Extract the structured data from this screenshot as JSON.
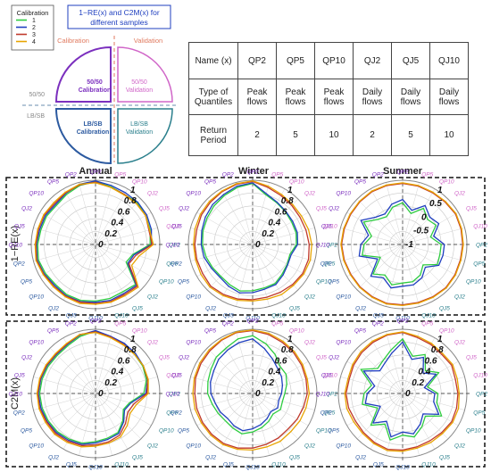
{
  "legend": {
    "title": "Calibration",
    "items": [
      {
        "label": "1",
        "color": "#2ecc40"
      },
      {
        "label": "2",
        "color": "#1f3fbf"
      },
      {
        "label": "3",
        "color": "#c0392b"
      },
      {
        "label": "4",
        "color": "#e8a400"
      }
    ]
  },
  "title_box": {
    "line1": "1−RE(x) and C2M(x) for",
    "line2": "different samples"
  },
  "schematic": {
    "calibration": "Calibration",
    "validation": "Validation",
    "split_top": "50/50",
    "split_bottom": "LB/SB",
    "q_tl": [
      "50/50",
      "Calibration"
    ],
    "q_tr": [
      "50/50",
      "Validation"
    ],
    "q_bl": [
      "LB/SB",
      "Calibration"
    ],
    "q_br": [
      "LB/SB",
      "Validation"
    ],
    "colors": {
      "purple": "#7b2fbe",
      "pink": "#d066c8",
      "blue": "#2c5aa0",
      "teal": "#2a7f8c",
      "orange": "#e07a5f"
    }
  },
  "table": {
    "row_headers": [
      "Name (x)",
      "Type of Quantiles",
      "Return Period"
    ],
    "names": [
      "QP2",
      "QP5",
      "QP10",
      "QJ2",
      "QJ5",
      "QJ10"
    ],
    "types": [
      "Peak flows",
      "Peak flows",
      "Peak flows",
      "Daily flows",
      "Daily flows",
      "Daily flows"
    ],
    "periods": [
      "2",
      "5",
      "10",
      "2",
      "5",
      "10"
    ]
  },
  "columns": [
    "Annual",
    "Winter",
    "Summer"
  ],
  "rows": [
    "1−RE(x)",
    "C2M(x)"
  ],
  "radial_ticks": [
    "1",
    "0.8",
    "0.6",
    "0.4",
    "0.2",
    "0"
  ],
  "summer_re_ticks": [
    "1",
    "0.5",
    "0",
    "-0.5",
    "-1"
  ],
  "axis_labels": [
    {
      "text": "QP2",
      "color": "#7b2fbe"
    },
    {
      "text": "QP5",
      "color": "#d066c8"
    },
    {
      "text": "QP10",
      "color": "#d066c8"
    },
    {
      "text": "QJ2",
      "color": "#d066c8"
    },
    {
      "text": "QJ5",
      "color": "#d066c8"
    },
    {
      "text": "QJ10",
      "color": "#d066c8"
    },
    {
      "text": "QP2",
      "color": "#2a7f8c"
    },
    {
      "text": "QP5",
      "color": "#2a7f8c"
    },
    {
      "text": "QP10",
      "color": "#2a7f8c"
    },
    {
      "text": "QJ2",
      "color": "#2a7f8c"
    },
    {
      "text": "QJ5",
      "color": "#2a7f8c"
    },
    {
      "text": "QJ10",
      "color": "#2a7f8c"
    },
    {
      "text": "QJ10",
      "color": "#2c5aa0"
    },
    {
      "text": "QJ5",
      "color": "#2c5aa0"
    },
    {
      "text": "QJ2",
      "color": "#2c5aa0"
    },
    {
      "text": "QP10",
      "color": "#2c5aa0"
    },
    {
      "text": "QP5",
      "color": "#2c5aa0"
    },
    {
      "text": "QP2",
      "color": "#2c5aa0"
    },
    {
      "text": "QJ10",
      "color": "#7b2fbe"
    },
    {
      "text": "QJ5",
      "color": "#7b2fbe"
    },
    {
      "text": "QJ2",
      "color": "#7b2fbe"
    },
    {
      "text": "QP10",
      "color": "#7b2fbe"
    },
    {
      "text": "QP5",
      "color": "#7b2fbe"
    },
    {
      "text": "QP2",
      "color": "#7b2fbe"
    }
  ],
  "chart_data": {
    "type": "radar",
    "panels": [
      {
        "row": "1−RE(x)",
        "col": "Annual",
        "rmin": 0,
        "rmax": 1,
        "series": [
          {
            "name": "1",
            "values": [
              0.98,
              0.93,
              0.9,
              0.92,
              0.9,
              0.88,
              0.85,
              0.6,
              0.55,
              0.88,
              0.85,
              0.87,
              0.88,
              0.9,
              0.9,
              0.88,
              0.9,
              0.92,
              0.9,
              0.88,
              0.88,
              0.86,
              0.9,
              0.95
            ]
          },
          {
            "name": "2",
            "values": [
              0.99,
              0.95,
              0.93,
              0.93,
              0.92,
              0.9,
              0.87,
              0.62,
              0.58,
              0.9,
              0.88,
              0.9,
              0.9,
              0.92,
              0.92,
              0.9,
              0.92,
              0.94,
              0.92,
              0.9,
              0.9,
              0.88,
              0.92,
              0.97
            ]
          },
          {
            "name": "3",
            "values": [
              0.97,
              0.92,
              0.9,
              0.9,
              0.9,
              0.86,
              0.88,
              0.65,
              0.6,
              0.92,
              0.9,
              0.92,
              0.92,
              0.93,
              0.93,
              0.92,
              0.93,
              0.95,
              0.93,
              0.92,
              0.92,
              0.9,
              0.93,
              0.96
            ]
          },
          {
            "name": "4",
            "values": [
              0.96,
              0.92,
              0.89,
              0.9,
              0.9,
              0.87,
              0.9,
              0.7,
              0.65,
              0.94,
              0.92,
              0.93,
              0.93,
              0.95,
              0.94,
              0.93,
              0.94,
              0.96,
              0.94,
              0.93,
              0.93,
              0.92,
              0.94,
              0.97
            ]
          }
        ]
      },
      {
        "row": "1−RE(x)",
        "col": "Winter",
        "rmin": 0,
        "rmax": 1,
        "series": [
          {
            "name": "1",
            "values": [
              0.95,
              0.8,
              0.75,
              0.72,
              0.7,
              0.7,
              0.68,
              0.6,
              0.62,
              0.65,
              0.7,
              0.7,
              0.72,
              0.75,
              0.72,
              0.7,
              0.72,
              0.75,
              0.78,
              0.8,
              0.82,
              0.85,
              0.88,
              0.92
            ]
          },
          {
            "name": "2",
            "values": [
              0.96,
              0.82,
              0.76,
              0.73,
              0.72,
              0.72,
              0.7,
              0.62,
              0.63,
              0.67,
              0.72,
              0.72,
              0.75,
              0.78,
              0.75,
              0.72,
              0.74,
              0.78,
              0.8,
              0.82,
              0.85,
              0.88,
              0.9,
              0.94
            ]
          },
          {
            "name": "3",
            "values": [
              0.98,
              0.92,
              0.88,
              0.86,
              0.85,
              0.86,
              0.88,
              0.9,
              0.9,
              0.88,
              0.86,
              0.85,
              0.86,
              0.88,
              0.9,
              0.92,
              0.9,
              0.9,
              0.9,
              0.9,
              0.92,
              0.93,
              0.95,
              0.97
            ]
          },
          {
            "name": "4",
            "values": [
              0.99,
              0.94,
              0.9,
              0.88,
              0.88,
              0.9,
              0.92,
              0.93,
              0.92,
              0.9,
              0.9,
              0.88,
              0.88,
              0.9,
              0.92,
              0.94,
              0.93,
              0.92,
              0.92,
              0.93,
              0.94,
              0.95,
              0.96,
              0.98
            ]
          }
        ]
      },
      {
        "row": "1−RE(x)",
        "col": "Summer",
        "rmin": -1,
        "rmax": 1,
        "series": [
          {
            "name": "1",
            "values": [
              0.3,
              0.0,
              0.3,
              0.1,
              0.2,
              -0.1,
              0.2,
              0.2,
              0.25,
              -0.1,
              0.1,
              0.2,
              0.2,
              0.3,
              0.1,
              0.3,
              -0.2,
              0.3,
              0.2,
              0.0,
              0.4,
              0.1,
              0.0,
              0.2
            ]
          },
          {
            "name": "2",
            "values": [
              0.4,
              0.1,
              0.4,
              0.2,
              0.3,
              0.0,
              0.3,
              0.3,
              0.3,
              0.0,
              0.2,
              0.3,
              0.3,
              0.4,
              0.2,
              0.4,
              -0.1,
              0.4,
              0.3,
              0.1,
              0.5,
              0.2,
              0.1,
              0.3
            ]
          },
          {
            "name": "3",
            "values": [
              0.9,
              0.88,
              0.86,
              0.87,
              0.9,
              0.88,
              0.87,
              0.86,
              0.88,
              0.9,
              0.88,
              0.87,
              0.88,
              0.9,
              0.88,
              0.87,
              0.86,
              0.88,
              0.9,
              0.88,
              0.87,
              0.88,
              0.9,
              0.9
            ]
          },
          {
            "name": "4",
            "values": [
              0.92,
              0.9,
              0.88,
              0.89,
              0.92,
              0.9,
              0.89,
              0.88,
              0.9,
              0.92,
              0.9,
              0.89,
              0.9,
              0.92,
              0.9,
              0.89,
              0.88,
              0.9,
              0.92,
              0.9,
              0.89,
              0.9,
              0.92,
              0.92
            ]
          }
        ]
      },
      {
        "row": "C2M(x)",
        "col": "Annual",
        "rmin": 0,
        "rmax": 1,
        "series": [
          {
            "name": "1",
            "values": [
              0.97,
              0.9,
              0.88,
              0.86,
              0.85,
              0.82,
              0.75,
              0.55,
              0.5,
              0.6,
              0.7,
              0.72,
              0.75,
              0.8,
              0.82,
              0.84,
              0.85,
              0.86,
              0.87,
              0.86,
              0.85,
              0.84,
              0.86,
              0.92
            ]
          },
          {
            "name": "2",
            "values": [
              0.98,
              0.92,
              0.9,
              0.88,
              0.86,
              0.84,
              0.78,
              0.57,
              0.52,
              0.62,
              0.72,
              0.74,
              0.77,
              0.82,
              0.84,
              0.86,
              0.87,
              0.88,
              0.89,
              0.88,
              0.87,
              0.86,
              0.88,
              0.94
            ]
          },
          {
            "name": "3",
            "values": [
              0.96,
              0.91,
              0.88,
              0.86,
              0.86,
              0.84,
              0.8,
              0.62,
              0.58,
              0.66,
              0.75,
              0.78,
              0.8,
              0.84,
              0.86,
              0.88,
              0.88,
              0.9,
              0.9,
              0.89,
              0.88,
              0.87,
              0.89,
              0.95
            ]
          },
          {
            "name": "4",
            "values": [
              0.95,
              0.9,
              0.87,
              0.86,
              0.86,
              0.85,
              0.82,
              0.66,
              0.62,
              0.7,
              0.78,
              0.8,
              0.82,
              0.86,
              0.88,
              0.9,
              0.9,
              0.91,
              0.91,
              0.9,
              0.89,
              0.88,
              0.9,
              0.95
            ]
          }
        ]
      },
      {
        "row": "C2M(x)",
        "col": "Winter",
        "rmin": 0,
        "rmax": 1,
        "series": [
          {
            "name": "1",
            "values": [
              0.9,
              0.8,
              0.7,
              0.6,
              0.6,
              0.55,
              0.5,
              0.48,
              0.5,
              0.45,
              0.5,
              0.55,
              0.6,
              0.65,
              0.62,
              0.6,
              0.62,
              0.65,
              0.7,
              0.72,
              0.75,
              0.8,
              0.82,
              0.88
            ]
          },
          {
            "name": "2",
            "values": [
              0.85,
              0.72,
              0.62,
              0.55,
              0.52,
              0.48,
              0.45,
              0.42,
              0.45,
              0.4,
              0.45,
              0.5,
              0.55,
              0.6,
              0.58,
              0.55,
              0.58,
              0.6,
              0.65,
              0.68,
              0.7,
              0.75,
              0.78,
              0.82
            ]
          },
          {
            "name": "3",
            "values": [
              0.98,
              0.95,
              0.92,
              0.9,
              0.88,
              0.86,
              0.85,
              0.82,
              0.8,
              0.78,
              0.8,
              0.82,
              0.85,
              0.88,
              0.9,
              0.9,
              0.9,
              0.9,
              0.9,
              0.92,
              0.93,
              0.94,
              0.96,
              0.98
            ]
          },
          {
            "name": "4",
            "values": [
              0.99,
              0.97,
              0.94,
              0.92,
              0.9,
              0.88,
              0.88,
              0.86,
              0.85,
              0.84,
              0.86,
              0.86,
              0.88,
              0.9,
              0.92,
              0.92,
              0.92,
              0.93,
              0.93,
              0.94,
              0.95,
              0.96,
              0.97,
              0.99
            ]
          }
        ]
      },
      {
        "row": "C2M(x)",
        "col": "Summer",
        "rmin": 0,
        "rmax": 1,
        "series": [
          {
            "name": "1",
            "values": [
              0.85,
              0.6,
              0.7,
              0.5,
              0.65,
              0.4,
              0.55,
              0.55,
              0.7,
              0.5,
              0.6,
              0.7,
              0.65,
              0.75,
              0.55,
              0.7,
              0.45,
              0.65,
              0.6,
              0.5,
              0.75,
              0.55,
              0.6,
              0.7
            ]
          },
          {
            "name": "2",
            "values": [
              0.8,
              0.55,
              0.65,
              0.45,
              0.6,
              0.35,
              0.5,
              0.5,
              0.65,
              0.45,
              0.55,
              0.65,
              0.6,
              0.7,
              0.5,
              0.65,
              0.4,
              0.6,
              0.55,
              0.45,
              0.7,
              0.5,
              0.55,
              0.65
            ]
          },
          {
            "name": "3",
            "values": [
              0.95,
              0.9,
              0.88,
              0.86,
              0.88,
              0.85,
              0.86,
              0.87,
              0.88,
              0.86,
              0.85,
              0.86,
              0.88,
              0.9,
              0.88,
              0.86,
              0.85,
              0.87,
              0.88,
              0.86,
              0.88,
              0.9,
              0.92,
              0.94
            ]
          },
          {
            "name": "4",
            "values": [
              0.96,
              0.92,
              0.9,
              0.88,
              0.9,
              0.88,
              0.88,
              0.9,
              0.9,
              0.88,
              0.88,
              0.88,
              0.9,
              0.92,
              0.9,
              0.88,
              0.88,
              0.9,
              0.9,
              0.88,
              0.9,
              0.92,
              0.94,
              0.95
            ]
          }
        ]
      }
    ]
  }
}
